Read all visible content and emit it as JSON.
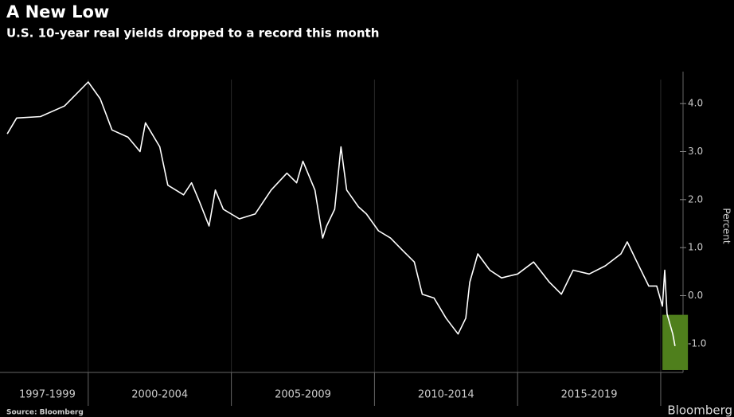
{
  "chart_data": {
    "type": "line",
    "title": "A New Low",
    "subtitle": "U.S. 10-year real yields dropped to a record this month",
    "y_label": "Percent",
    "source": "Source: Bloomberg",
    "brand": "Bloomberg",
    "x": [
      1997.17,
      1997.5,
      1998.33,
      1999.17,
      2000.0,
      2000.42,
      2000.83,
      2001.39,
      2001.81,
      2002.0,
      2002.5,
      2002.78,
      2003.33,
      2003.61,
      2003.89,
      2004.22,
      2004.44,
      2004.72,
      2005.28,
      2005.83,
      2006.39,
      2006.94,
      2007.28,
      2007.5,
      2007.92,
      2008.19,
      2008.33,
      2008.61,
      2008.83,
      2009.03,
      2009.44,
      2009.72,
      2010.14,
      2010.56,
      2010.97,
      2011.39,
      2011.67,
      2012.08,
      2012.5,
      2012.92,
      2013.19,
      2013.33,
      2013.61,
      2014.03,
      2014.44,
      2015.0,
      2015.56,
      2016.11,
      2016.53,
      2016.94,
      2017.5,
      2018.06,
      2018.61,
      2018.83,
      2019.17,
      2019.58,
      2019.86,
      2020.06,
      2020.14,
      2020.22,
      2020.42,
      2020.5
    ],
    "series": [
      {
        "name": "U.S. 10-year real yield",
        "color": "#ffffff",
        "values": [
          3.37,
          3.7,
          3.73,
          3.95,
          4.45,
          4.1,
          3.45,
          3.3,
          3.0,
          3.6,
          3.1,
          2.3,
          2.1,
          2.35,
          1.95,
          1.45,
          2.2,
          1.8,
          1.6,
          1.7,
          2.2,
          2.55,
          2.35,
          2.8,
          2.2,
          1.2,
          1.45,
          1.8,
          3.1,
          2.2,
          1.85,
          1.7,
          1.35,
          1.2,
          0.95,
          0.7,
          0.03,
          -0.05,
          -0.47,
          -0.8,
          -0.47,
          0.28,
          0.87,
          0.53,
          0.37,
          0.45,
          0.7,
          0.28,
          0.03,
          0.53,
          0.45,
          0.62,
          0.87,
          1.12,
          0.7,
          0.2,
          0.2,
          -0.22,
          0.53,
          -0.38,
          -0.8,
          -1.05
        ]
      }
    ],
    "xlim": [
      1997.14,
      2020.78
    ],
    "ylim": [
      -1.6,
      4.5
    ],
    "yticks": [
      {
        "value": 4,
        "label": "4.0"
      },
      {
        "value": 3,
        "label": "3.0"
      },
      {
        "value": 2,
        "label": "2.0"
      },
      {
        "value": 1,
        "label": "1.0"
      },
      {
        "value": 0,
        "label": "0.0"
      },
      {
        "value": -1,
        "label": "-1.0"
      }
    ],
    "x_dividers": [
      2000,
      2005,
      2010,
      2015,
      2020
    ],
    "periods": [
      {
        "label": "1997-1999",
        "start": 1997,
        "end": 2000
      },
      {
        "label": "2000-2004",
        "start": 2000,
        "end": 2005
      },
      {
        "label": "2005-2009",
        "start": 2005,
        "end": 2010
      },
      {
        "label": "2010-2014",
        "start": 2010,
        "end": 2015
      },
      {
        "label": "2015-2019",
        "start": 2015,
        "end": 2020
      }
    ],
    "highlight": {
      "x": [
        2020.06,
        2020.95
      ],
      "y": [
        -1.55,
        -0.4
      ],
      "color": "#4f7f1c"
    }
  }
}
